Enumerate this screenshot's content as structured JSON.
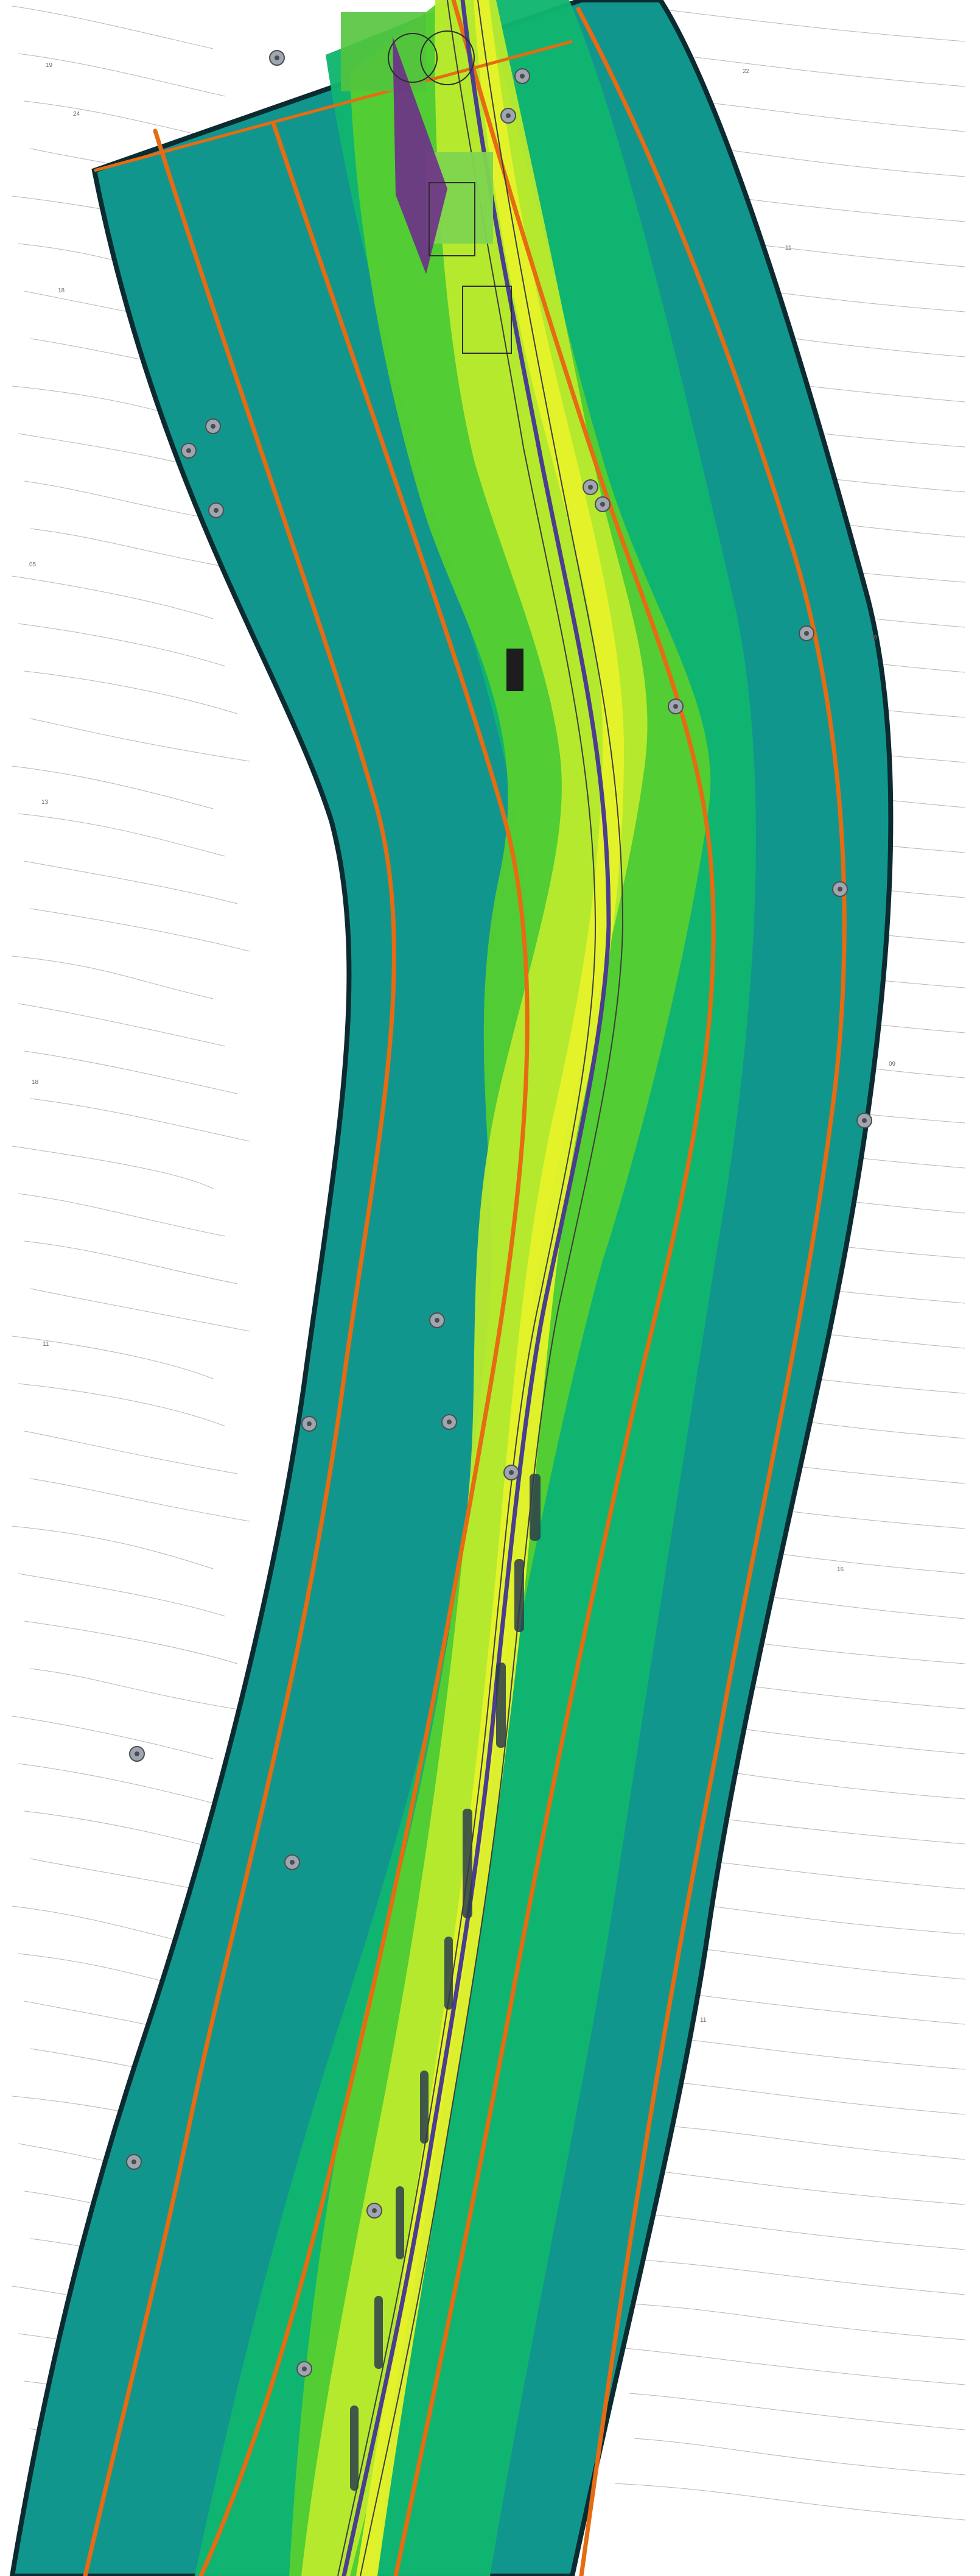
{
  "map": {
    "image_type": "road corridor noise map",
    "colors": {
      "background": "#ffffff",
      "outside_contours": "#8f8f8f",
      "outer_band": "#11968e",
      "middle_band": "#11b56f",
      "inner_band": "#56cf2f",
      "core_band": "#b9ea2e",
      "hot_band": "#e7f22a",
      "edge_outline": "#0b2b30",
      "corridor_lines": "#e66b12",
      "road_centerline": "#4b3d8f",
      "structures": "#3d3d3d"
    },
    "features": {
      "outer_corridor": "visible",
      "orange_guides": "visible",
      "noise_gradient": "visible",
      "central_infrastructure": "visible",
      "terrain_contours": "visible"
    },
    "labels": [
      "19",
      "24",
      "18",
      "05",
      "13",
      "18",
      "11",
      "22",
      "11",
      "09",
      "09",
      "16",
      "11"
    ]
  }
}
